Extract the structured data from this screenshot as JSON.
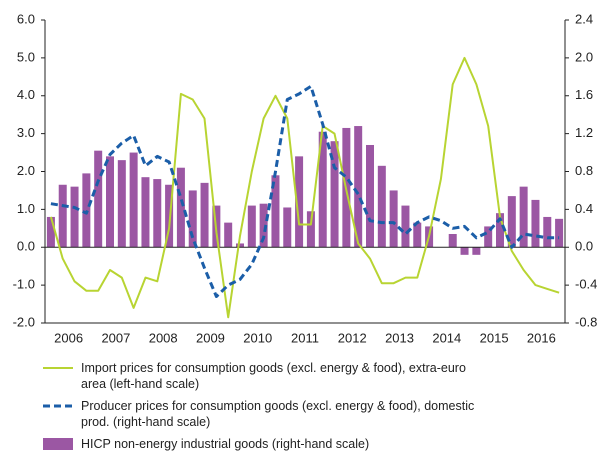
{
  "chart_data": {
    "type": "bar-line",
    "categories": [
      "2006",
      null,
      null,
      null,
      "2007",
      null,
      null,
      null,
      "2008",
      null,
      null,
      null,
      "2009",
      null,
      null,
      null,
      "2010",
      null,
      null,
      null,
      "2011",
      null,
      null,
      null,
      "2012",
      null,
      null,
      null,
      "2013",
      null,
      null,
      null,
      "2014",
      null,
      null,
      null,
      "2015",
      null,
      null,
      null,
      "2016",
      null,
      null,
      null
    ],
    "series": [
      {
        "name": "Import prices for consumption goods (excl. energy & food), extra-euro area (left-hand scale)",
        "type": "line",
        "style": "solid",
        "axis": "y",
        "color": "#b8d432",
        "values": [
          0.8,
          -0.3,
          -0.9,
          -1.15,
          -1.15,
          -0.6,
          -0.8,
          -1.6,
          -0.8,
          -0.9,
          0.5,
          4.05,
          3.9,
          3.4,
          0.4,
          -1.85,
          0.3,
          2.0,
          3.4,
          4.0,
          3.4,
          0.6,
          0.6,
          3.2,
          3.0,
          1.5,
          0.1,
          -0.3,
          -0.95,
          -0.95,
          -0.8,
          -0.8,
          0.3,
          1.8,
          4.3,
          5.0,
          4.3,
          3.2,
          0.8,
          -0.1,
          -0.6,
          -1.0,
          -1.1,
          -1.2
        ]
      },
      {
        "name": "Producer prices for consumption goods (excl. energy & food), domestic prod. (right-hand scale)",
        "type": "line",
        "style": "dashed",
        "axis": "y2",
        "color": "#1b5ea8",
        "values": [
          0.46,
          0.44,
          0.42,
          0.36,
          0.7,
          0.98,
          1.1,
          1.18,
          0.86,
          0.96,
          0.9,
          0.52,
          0.1,
          -0.22,
          -0.52,
          -0.4,
          -0.34,
          -0.18,
          0.1,
          0.8,
          1.56,
          1.62,
          1.7,
          1.3,
          0.84,
          0.74,
          0.56,
          0.28,
          0.26,
          0.26,
          0.14,
          0.26,
          0.32,
          0.28,
          0.2,
          0.22,
          0.1,
          0.16,
          0.3,
          0.0,
          0.14,
          0.12,
          0.1,
          0.1
        ]
      },
      {
        "name": "HICP non-energy industrial goods (right-hand scale)",
        "type": "bar",
        "axis": "y2",
        "color": "#9b57a3",
        "values": [
          0.32,
          0.66,
          0.64,
          0.78,
          1.02,
          0.96,
          0.92,
          1.0,
          0.74,
          0.72,
          0.66,
          0.84,
          0.6,
          0.68,
          0.44,
          0.26,
          0.04,
          0.44,
          0.46,
          0.76,
          0.42,
          0.96,
          0.38,
          1.22,
          1.12,
          1.26,
          1.28,
          1.08,
          0.86,
          0.6,
          0.44,
          0.26,
          0.22,
          0.0,
          0.14,
          -0.08,
          -0.08,
          0.22,
          0.36,
          0.54,
          0.64,
          0.5,
          0.32,
          0.3
        ]
      }
    ],
    "ylim": [
      -2,
      6
    ],
    "yticks": [
      {
        "value": -2,
        "label": "-2.0"
      },
      {
        "value": -1,
        "label": "-1.0"
      },
      {
        "value": 0,
        "label": "0.0"
      },
      {
        "value": 1,
        "label": "1.0"
      },
      {
        "value": 2,
        "label": "2.0"
      },
      {
        "value": 3,
        "label": "3.0"
      },
      {
        "value": 4,
        "label": "4.0"
      },
      {
        "value": 5,
        "label": "5.0"
      },
      {
        "value": 6,
        "label": "6.0"
      }
    ],
    "y2lim": [
      -0.8,
      2.4
    ],
    "y2ticks": [
      {
        "value": -0.8,
        "label": "-0.8"
      },
      {
        "value": -0.4,
        "label": "-0.4"
      },
      {
        "value": 0,
        "label": "0.0"
      },
      0.4,
      0.8,
      1.2,
      1.6,
      {
        "value": 2,
        "label": "2.0"
      },
      2.4
    ],
    "grid": false,
    "legend": "bottom"
  }
}
